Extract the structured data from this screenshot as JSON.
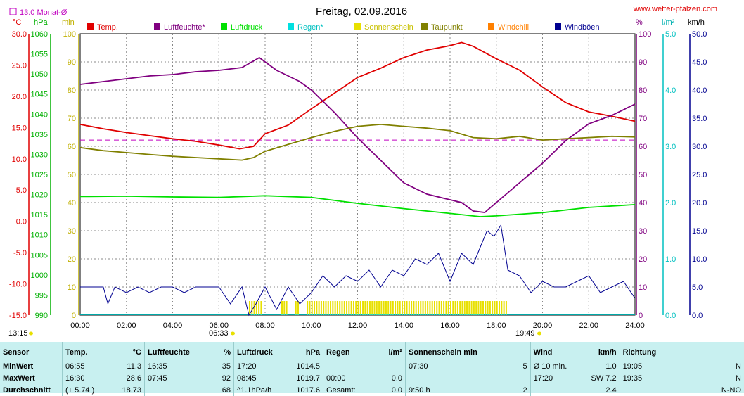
{
  "header": {
    "title": "Freitag, 02.09.2016",
    "website": "www.wetter-pfalzen.com",
    "monat_label": "13.0 Monat-Ø",
    "left_units": [
      "°C",
      "hPa",
      "min"
    ],
    "right_units": [
      "%",
      "l/m²",
      "km/h"
    ]
  },
  "legend": [
    "Temp.",
    "Luftfeuchte*",
    "Luftdruck",
    "Regen*",
    "Sonnenschein",
    "Taupunkt",
    "Windchill",
    "Windböen"
  ],
  "colors": {
    "temp": "#e00000",
    "humidity": "#800080",
    "pressure": "#00e000",
    "rain": "#00e0e0",
    "sunshine": "#e8e000",
    "dewpoint": "#808000",
    "windchill": "#ff8000",
    "gusts": "#000090",
    "monat": "#c000c0"
  },
  "markers": {
    "sunrise_time": "06:33",
    "sunset_time": "19:49",
    "start_time": "13:15"
  },
  "chart_data": {
    "type": "line",
    "title": "Freitag, 02.09.2016",
    "x_ticks": [
      "00:00",
      "02:00",
      "04:00",
      "06:00",
      "08:00",
      "10:00",
      "12:00",
      "14:00",
      "16:00",
      "18:00",
      "20:00",
      "22:00",
      "24:00"
    ],
    "xlim": [
      0,
      24
    ],
    "y_axes": {
      "temp_c": {
        "ticks": [
          "30.0",
          "25.0",
          "20.0",
          "15.0",
          "10.0",
          "5.0",
          "0.0",
          "-5.0",
          "-10.0",
          "-15.0"
        ],
        "range": [
          -15,
          30
        ]
      },
      "pressure_hpa": {
        "ticks": [
          "1060",
          "1055",
          "1050",
          "1045",
          "1040",
          "1035",
          "1030",
          "1025",
          "1020",
          "1015",
          "1010",
          "1005",
          "1000",
          "995",
          "990"
        ],
        "range": [
          990,
          1060
        ]
      },
      "sun_min": {
        "ticks": [
          "100",
          "90",
          "80",
          "70",
          "60",
          "50",
          "40",
          "30",
          "20",
          "10",
          "0"
        ],
        "range": [
          0,
          100
        ]
      },
      "humidity_pct": {
        "ticks": [
          "100",
          "90",
          "80",
          "70",
          "60",
          "50",
          "40",
          "30",
          "20",
          "10",
          "0"
        ],
        "range": [
          0,
          100
        ]
      },
      "rain_lm2": {
        "ticks": [
          "5.0",
          "4.0",
          "3.0",
          "2.0",
          "1.0",
          "0.0"
        ],
        "range": [
          0,
          5
        ]
      },
      "wind_kmh": {
        "ticks": [
          "50.0",
          "45.0",
          "40.0",
          "35.0",
          "30.0",
          "25.0",
          "20.0",
          "15.0",
          "10.0",
          "5.0",
          "0.0"
        ],
        "range": [
          0,
          50
        ]
      }
    },
    "monat_avg_temp": 13.0,
    "series": [
      {
        "name": "Temp.",
        "key": "temp",
        "x": [
          0,
          1,
          2,
          3,
          4,
          5,
          6,
          6.9,
          7.5,
          8,
          9,
          10,
          11,
          12,
          13,
          14,
          15,
          16,
          16.5,
          17,
          18,
          19,
          20,
          21,
          22,
          23,
          24
        ],
        "values": [
          15.5,
          14.8,
          14.2,
          13.7,
          13.2,
          12.8,
          12.2,
          11.6,
          12.0,
          14.0,
          15.4,
          18.0,
          20.5,
          23.0,
          24.5,
          26.2,
          27.4,
          28.1,
          28.6,
          28.0,
          26.0,
          24.2,
          21.5,
          19.0,
          17.5,
          16.8,
          16.0
        ]
      },
      {
        "name": "Luftfeuchte*",
        "key": "humidity",
        "x": [
          0,
          1,
          2,
          3,
          4,
          5,
          6,
          7,
          7.75,
          8.5,
          9.5,
          10,
          11,
          12,
          13,
          14,
          15,
          16,
          16.5,
          17,
          17.5,
          18,
          19,
          20,
          21,
          22,
          23,
          24
        ],
        "values": [
          82,
          83,
          84,
          85,
          85.5,
          86.5,
          87,
          88,
          91.5,
          87,
          83,
          80,
          72,
          63,
          55,
          47,
          43,
          41,
          40,
          37,
          36.5,
          40,
          47,
          54,
          62,
          68,
          71,
          75
        ]
      },
      {
        "name": "Luftdruck",
        "key": "pressure",
        "x": [
          0,
          2,
          4,
          6,
          8,
          10,
          12,
          14,
          16,
          17.3,
          18,
          20,
          22,
          24
        ],
        "values": [
          1019.5,
          1019.6,
          1019.4,
          1019.3,
          1019.7,
          1019.3,
          1017.8,
          1016.5,
          1015.3,
          1014.5,
          1014.7,
          1015.5,
          1016.8,
          1017.5
        ]
      },
      {
        "name": "Taupunkt",
        "key": "dewpoint",
        "x": [
          0,
          1,
          2,
          3,
          4,
          5,
          6,
          7,
          7.5,
          8,
          9,
          10,
          11,
          12,
          13,
          14,
          15,
          16,
          17,
          18,
          19,
          20,
          21,
          22,
          23,
          24
        ],
        "values": [
          11.8,
          11.3,
          11.0,
          10.7,
          10.4,
          10.2,
          10.0,
          9.8,
          10.2,
          11.2,
          12.3,
          13.4,
          14.4,
          15.2,
          15.5,
          15.2,
          14.9,
          14.5,
          13.4,
          13.2,
          13.6,
          13.0,
          13.2,
          13.4,
          13.6,
          13.5
        ]
      },
      {
        "name": "Windböen",
        "key": "gusts",
        "x": [
          0,
          1,
          1.2,
          1.5,
          2,
          2.5,
          3,
          3.5,
          4,
          4.5,
          5,
          5.5,
          6,
          6.5,
          7,
          7.3,
          7.6,
          8,
          8.5,
          9,
          9.5,
          10,
          10.5,
          11,
          11.5,
          12,
          12.5,
          13,
          13.5,
          14,
          14.5,
          15,
          15.5,
          16,
          16.5,
          17,
          17.3,
          17.6,
          17.9,
          18.2,
          18.5,
          19,
          19.5,
          20,
          20.5,
          21,
          21.5,
          22,
          22.5,
          23,
          23.5,
          24
        ],
        "values": [
          5,
          5,
          2,
          5,
          4,
          5,
          4,
          5,
          5,
          4,
          5,
          5,
          5,
          2,
          5,
          0,
          2,
          5,
          1,
          5,
          2,
          4,
          7,
          5,
          7,
          6,
          8,
          5,
          8,
          7,
          10,
          9,
          11,
          6,
          11,
          9,
          12,
          15,
          14,
          16,
          8,
          7,
          4,
          6,
          5,
          5,
          6,
          7,
          4,
          5,
          6,
          3
        ]
      }
    ],
    "sunshine_minutes": {
      "start": 7.3,
      "end": 18.5,
      "gaps": [
        [
          7.8,
          8.6
        ],
        [
          8.9,
          9.2
        ],
        [
          9.4,
          9.7
        ]
      ]
    }
  },
  "table": {
    "headers": [
      "Sensor",
      "Temp.",
      "°C",
      "Luftfeuchte",
      "%",
      "Luftdruck",
      "hPa",
      "Regen",
      "l/m²",
      "Sonnenschein min",
      "Wind",
      "km/h",
      "Richtung"
    ],
    "rows": [
      {
        "label": "MinWert",
        "cells": [
          "06:55",
          "11.3",
          "16:35",
          "35",
          "17:20",
          "1014.5",
          "",
          "",
          "07:30",
          "5",
          "Ø 10 min.",
          "1.0",
          "19:05",
          "N"
        ]
      },
      {
        "label": "MaxWert",
        "cells": [
          "16:30",
          "28.6",
          "07:45",
          "92",
          "08:45",
          "1019.7",
          "00:00",
          "0.0",
          "",
          "",
          "17:20",
          "SW 7.2",
          "19:35",
          "N"
        ]
      },
      {
        "label": "Durchschnitt",
        "cells": [
          "(+ 5.74 )",
          "18.73",
          "",
          "68",
          "^1.1hPa/h",
          "1017.6",
          "Gesamt:",
          "0.0",
          "9:50 h",
          "2",
          "",
          "2.4",
          "",
          "N-NO"
        ]
      }
    ]
  }
}
